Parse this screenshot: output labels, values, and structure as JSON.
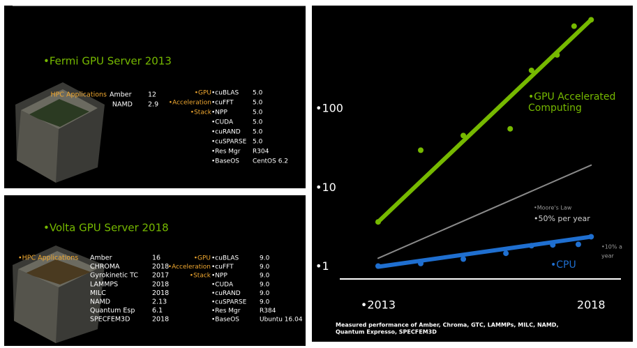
{
  "fermi_panel": {
    "title": "•Fermi GPU Server 2013",
    "apps_label": "HPC Applications",
    "apps": [
      [
        "Amber",
        "12"
      ],
      [
        "NAMD",
        "2.9"
      ]
    ],
    "stack_labels": [
      "•GPU",
      "•Acceleration",
      "•Stack"
    ],
    "stack": [
      [
        "•cuBLAS",
        "5.0"
      ],
      [
        "•cuFFT",
        "5.0"
      ],
      [
        "•NPP",
        "5.0"
      ],
      [
        "•CUDA",
        "5.0"
      ],
      [
        "•cuRAND",
        "5.0"
      ],
      [
        "•cuSPARSE",
        "5.0"
      ],
      [
        "•Res Mgr",
        "R304"
      ],
      [
        "•BaseOS",
        "CentOS 6.2"
      ]
    ]
  },
  "volta_panel": {
    "title": "•Volta GPU Server 2018",
    "apps_label": "•HPC Applications",
    "apps": [
      [
        "Amber",
        "16"
      ],
      [
        "CHROMA",
        "2018"
      ],
      [
        "Gyrokinetic TC",
        "2017"
      ],
      [
        "LAMMPS",
        "2018"
      ],
      [
        "MILC",
        "2018"
      ],
      [
        "NAMD",
        "2.13"
      ],
      [
        "Quantum Esp",
        "6.1"
      ],
      [
        "SPECFEM3D",
        "2018"
      ]
    ],
    "stack_labels": [
      "•GPU",
      "•Acceleration",
      "•Stack"
    ],
    "stack": [
      [
        "•cuBLAS",
        "9.0"
      ],
      [
        "•cuFFT",
        "9.0"
      ],
      [
        "•NPP",
        "9.0"
      ],
      [
        "•CUDA",
        "9.0"
      ],
      [
        "•cuRAND",
        "9.0"
      ],
      [
        "•cuSPARSE",
        "9.0"
      ],
      [
        "•Res Mgr",
        "R384"
      ],
      [
        "•BaseOS",
        "Ubuntu 16.04"
      ]
    ]
  },
  "chart_data": {
    "type": "scatter",
    "log_y": true,
    "xlim": [
      2012.1,
      2018.7
    ],
    "xticks": [
      {
        "value": 2013,
        "label": "•2013"
      },
      2018
    ],
    "ylim": [
      0.7,
      1600
    ],
    "yticks": [
      {
        "value": 1,
        "label": "•1"
      },
      {
        "value": 10,
        "label": "•10"
      },
      {
        "value": 100,
        "label": "•100"
      }
    ],
    "series": [
      {
        "mode": "points",
        "color": "#76b900",
        "x": [
          2013,
          2014,
          2015,
          2016.1,
          2016.6,
          2017.2,
          2017.6,
          2018
        ],
        "values": [
          3.7,
          30,
          46,
          56,
          308,
          484,
          1120,
          1350
        ]
      },
      {
        "mode": "line",
        "color": "#76b900",
        "x": [
          2013,
          2018
        ],
        "values": [
          3.7,
          1350
        ]
      },
      {
        "mode": "line",
        "color": "#8a8a8a",
        "x": [
          2013,
          2018
        ],
        "values": [
          1.28,
          19.4
        ]
      },
      {
        "mode": "line",
        "color": "#1f6fd0",
        "x": [
          2013,
          2018
        ],
        "values": [
          1,
          2.4
        ]
      },
      {
        "mode": "points",
        "color": "#1f6fd0",
        "x": [
          2013,
          2014,
          2015,
          2016,
          2016.6,
          2017.1,
          2017.7,
          2018
        ],
        "values": [
          1.02,
          1.1,
          1.25,
          1.48,
          1.85,
          1.89,
          1.92,
          2.4
        ]
      }
    ],
    "annotations": [
      {
        "lines": [
          "•GPU Accelerated",
          "Computing"
        ],
        "color": "#76b900"
      },
      {
        "lines": [
          "•Moore's Law"
        ],
        "color": "#9a9a9a"
      },
      {
        "lines": [
          "•50% per year"
        ],
        "color": "#cfcfcf"
      },
      {
        "lines": [
          "•10% a",
          "year"
        ],
        "color": "#9a9a9a"
      },
      {
        "lines": [
          "•CPU"
        ],
        "color": "#1f6fd0"
      }
    ],
    "footnote": [
      "Measured performance of Amber, Chroma, GTC, LAMMPs, MILC, NAMD,",
      "Quantum Expresso, SPECFEM3D"
    ]
  }
}
